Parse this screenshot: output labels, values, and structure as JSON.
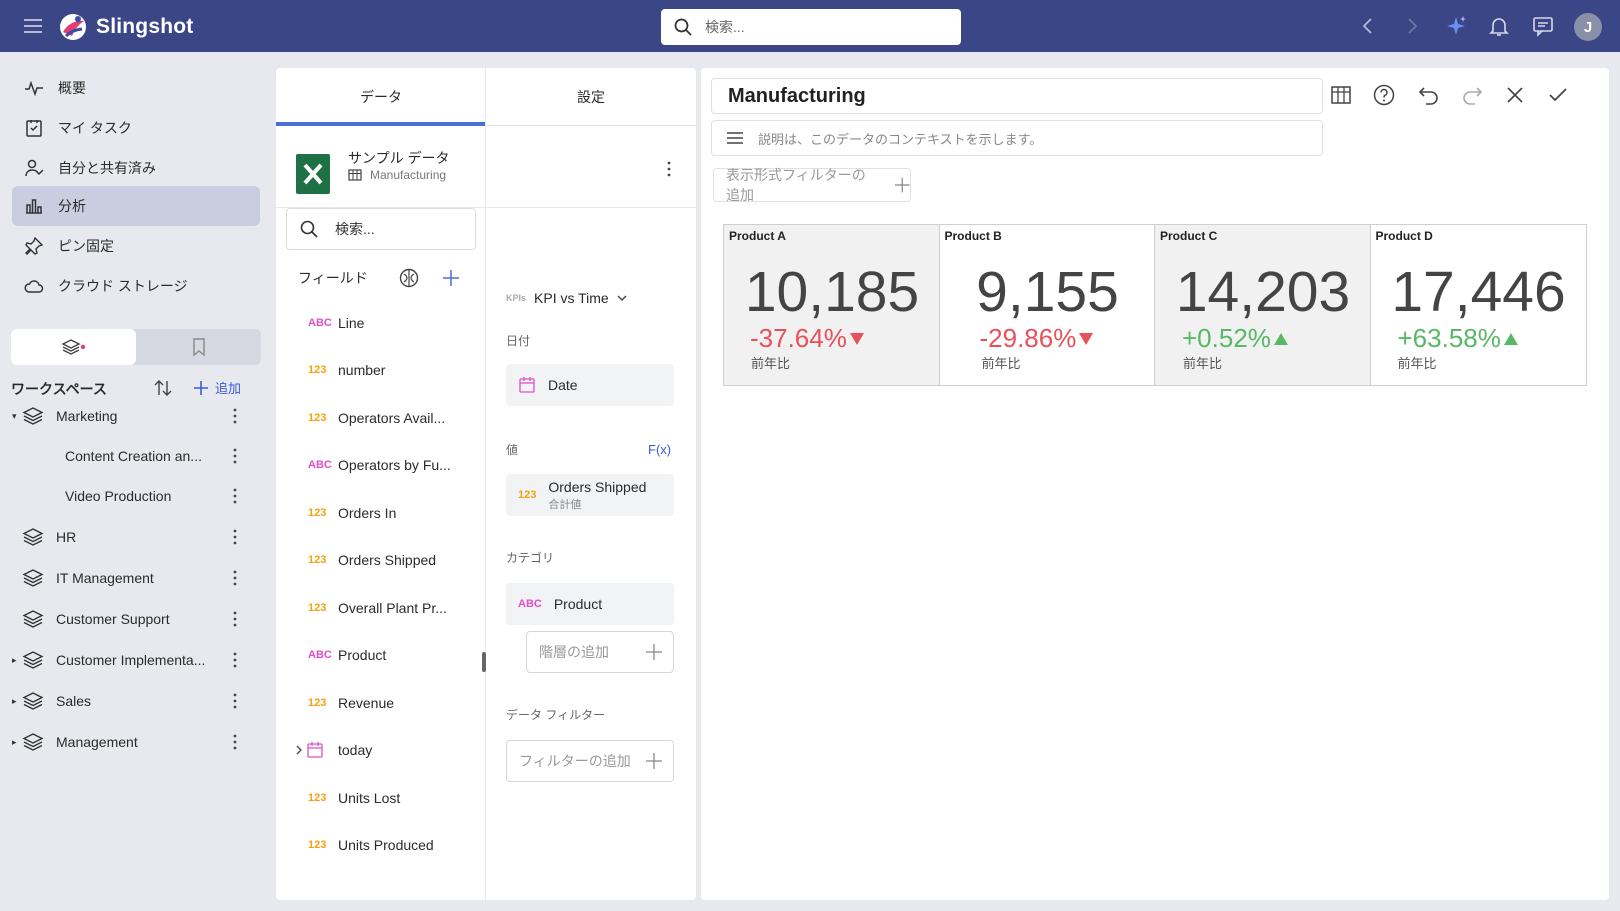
{
  "colors": {
    "topbar": "#3b4687",
    "accent": "#4a6fd8",
    "negative": "#e8505b",
    "positive": "#58b865",
    "abc_type": "#e04fc8",
    "num_type": "#f2a10f"
  },
  "app": {
    "name": "Slingshot",
    "search_placeholder": "検索...",
    "avatar_initial": "J"
  },
  "nav": {
    "items": [
      {
        "label": "概要",
        "icon": "activity-icon"
      },
      {
        "label": "マイ タスク",
        "icon": "task-icon"
      },
      {
        "label": "自分と共有済み",
        "icon": "shared-user-icon"
      },
      {
        "label": "分析",
        "icon": "bar-chart-icon"
      },
      {
        "label": "ピン固定",
        "icon": "pin-icon"
      },
      {
        "label": "クラウド ストレージ",
        "icon": "cloud-icon"
      }
    ]
  },
  "workspace": {
    "header": "ワークスペース",
    "add_label": "追加",
    "items": [
      {
        "label": "Marketing",
        "caret": "▾"
      },
      {
        "label": "Content Creation an...",
        "caret": ""
      },
      {
        "label": "Video Production",
        "caret": ""
      },
      {
        "label": "HR",
        "caret": ""
      },
      {
        "label": "IT Management",
        "caret": ""
      },
      {
        "label": "Customer Support",
        "caret": ""
      },
      {
        "label": "Customer Implementa...",
        "caret": "▸"
      },
      {
        "label": "Sales",
        "caret": "▸"
      },
      {
        "label": "Management",
        "caret": "▸"
      }
    ]
  },
  "mid": {
    "tabs": [
      "データ",
      "設定"
    ],
    "source_title": "サンプル データ",
    "source_sub": "Manufacturing",
    "search_placeholder": "検索...",
    "fields_header": "フィールド",
    "fields": [
      {
        "type": "ABC",
        "label": "Line"
      },
      {
        "type": "123",
        "label": "number"
      },
      {
        "type": "123",
        "label": "Operators Avail..."
      },
      {
        "type": "ABC",
        "label": "Operators by Fu..."
      },
      {
        "type": "123",
        "label": "Orders In"
      },
      {
        "type": "123",
        "label": "Orders Shipped"
      },
      {
        "type": "123",
        "label": "Overall Plant Pr..."
      },
      {
        "type": "ABC",
        "label": "Product"
      },
      {
        "type": "123",
        "label": "Revenue"
      },
      {
        "type": "CAL",
        "label": "today"
      },
      {
        "type": "123",
        "label": "Units Lost"
      },
      {
        "type": "123",
        "label": "Units Produced"
      }
    ],
    "kpi_badge": "KPIs",
    "viz_type": "KPI vs Time",
    "date_label": "日付",
    "date_field": "Date",
    "value_label": "値",
    "fx_label": "F(x)",
    "value_field": "Orders Shipped",
    "value_agg": "合計値",
    "value_type": "123",
    "category_label": "カテゴリ",
    "category_field": "Product",
    "category_type": "ABC",
    "add_hierarchy": "階層の追加",
    "data_filter_label": "データ フィルター",
    "add_filter": "フィルターの追加"
  },
  "right": {
    "title": "Manufacturing",
    "desc_placeholder": "説明は、このデータのコンテキストを示します。",
    "visual_filter": "表示形式フィルターの追加",
    "kpis": [
      {
        "name": "Product A",
        "value": "10,185",
        "delta": "-37.64%",
        "trend": "down",
        "compare": "前年比"
      },
      {
        "name": "Product B",
        "value": "9,155",
        "delta": "-29.86%",
        "trend": "down",
        "compare": "前年比"
      },
      {
        "name": "Product C",
        "value": "14,203",
        "delta": "+0.52%",
        "trend": "up",
        "compare": "前年比"
      },
      {
        "name": "Product D",
        "value": "17,446",
        "delta": "+63.58%",
        "trend": "up",
        "compare": "前年比"
      }
    ]
  }
}
